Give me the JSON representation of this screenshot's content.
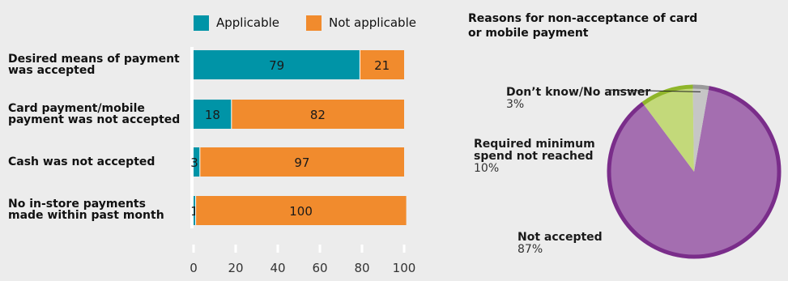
{
  "colors": {
    "applicable": "#0094a7",
    "not_applicable": "#f18b2d",
    "background": "#ececec",
    "pie_not_accepted": "#a46eb0",
    "pie_not_accepted_border": "#7a2d8a",
    "pie_min_spend": "#c3d97a",
    "pie_min_spend_border": "#8fb52a",
    "pie_dont_know": "#c6c6c6",
    "pie_dont_know_border": "#9a9a9a"
  },
  "chart_data": [
    {
      "type": "bar",
      "orientation": "horizontal",
      "stacked": true,
      "categories": [
        "Desired means of payment\nwas accepted",
        "Card payment/mobile\npayment was not accepted",
        "Cash was not accepted",
        "No in-store payments\nmade within past month"
      ],
      "series": [
        {
          "name": "Applicable",
          "values": [
            79,
            18,
            3,
            1
          ]
        },
        {
          "name": "Not applicable",
          "values": [
            21,
            82,
            97,
            100
          ]
        }
      ],
      "value_labels": [
        [
          "79",
          "18",
          "3",
          "1"
        ],
        [
          "21",
          "82",
          "97",
          "100"
        ]
      ],
      "xlim": [
        0,
        100
      ],
      "xticks": [
        "0",
        "20",
        "40",
        "60",
        "80",
        "100"
      ],
      "legend_position": "top",
      "grid": false
    },
    {
      "type": "pie",
      "title": "Reasons for non-acceptance of card\nor mobile payment",
      "slices": [
        {
          "label": "Not accepted",
          "pct_label": "87%",
          "value": 87
        },
        {
          "label": "Required minimum\nspend not reached",
          "pct_label": "10%",
          "value": 10
        },
        {
          "label": "Don’t know/No answer",
          "pct_label": "3%",
          "value": 3
        }
      ]
    }
  ]
}
